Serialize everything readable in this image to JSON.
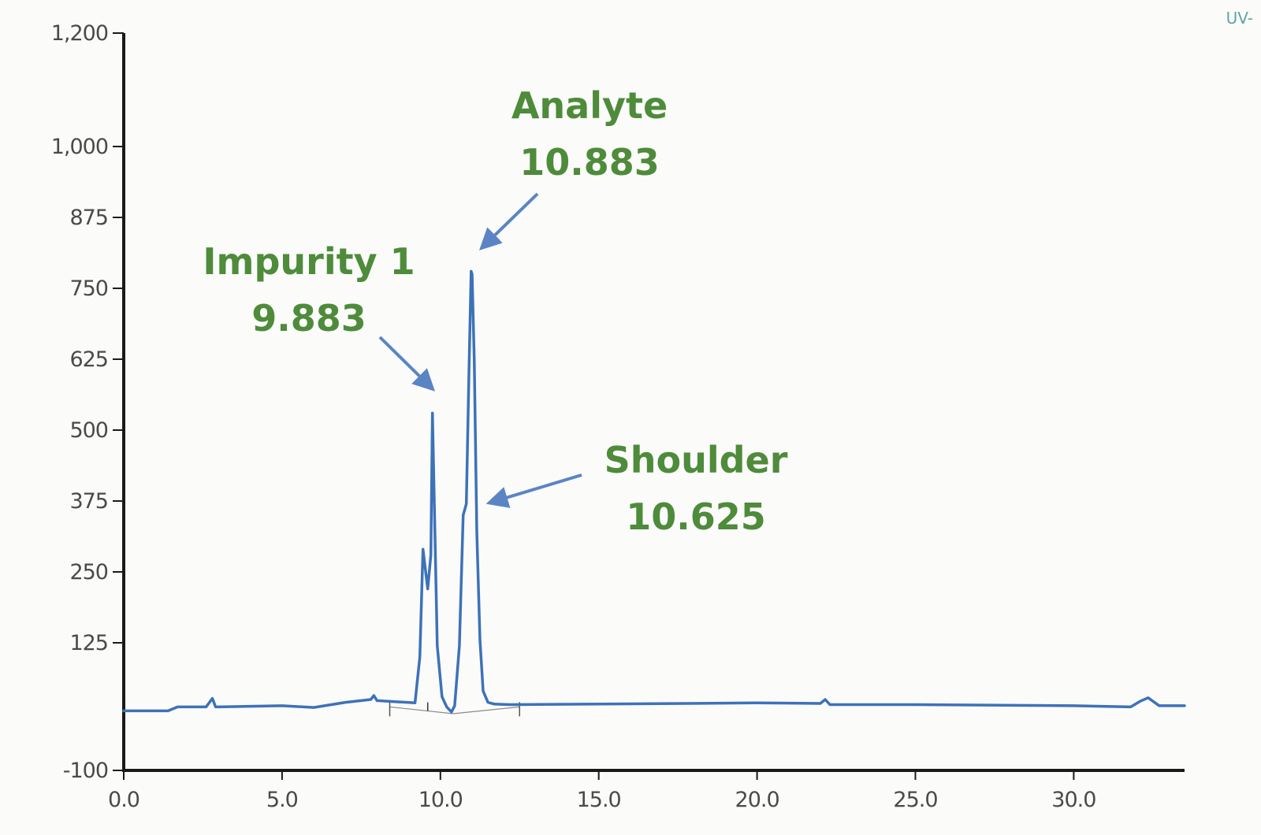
{
  "chart_data": {
    "type": "line",
    "title": "",
    "xlabel": "",
    "ylabel": "",
    "corner_label": "UV-",
    "xlim": [
      0,
      33.5
    ],
    "ylim": [
      -100,
      1200
    ],
    "y_ticks": [
      -100,
      125,
      250,
      375,
      500,
      625,
      750,
      875,
      1000,
      1200
    ],
    "y_tick_labels": [
      "-100",
      "125",
      "250",
      "375",
      "500",
      "625",
      "750",
      "875",
      "1,000",
      "1,200"
    ],
    "x_ticks": [
      0,
      5,
      10,
      15,
      20,
      25,
      30
    ],
    "x_tick_labels": [
      "0.0",
      "5.0",
      "10.0",
      "15.0",
      "20.0",
      "25.0",
      "30.0"
    ],
    "grid": false,
    "series": [
      {
        "color": "#3d72b8",
        "x": [
          0.0,
          1.4,
          1.7,
          2.6,
          2.8,
          2.9,
          3.0,
          5.0,
          6.0,
          7.0,
          7.8,
          7.9,
          8.0,
          9.2,
          9.35,
          9.45,
          9.6,
          9.7,
          9.75,
          9.9,
          10.05,
          10.2,
          10.35,
          10.45,
          10.6,
          10.72,
          10.82,
          10.9,
          10.97,
          11.0,
          11.07,
          11.15,
          11.25,
          11.35,
          11.5,
          11.7,
          12.2,
          15.0,
          20.0,
          22.0,
          22.15,
          22.3,
          25.0,
          30.0,
          31.8,
          32.1,
          32.35,
          32.7,
          33.5
        ],
        "y": [
          5,
          5,
          12,
          12,
          27,
          12,
          12,
          14,
          11,
          20,
          25,
          32,
          23,
          19,
          100,
          290,
          220,
          280,
          530,
          120,
          30,
          12,
          3,
          14,
          120,
          350,
          370,
          600,
          780,
          775,
          620,
          320,
          130,
          40,
          20,
          17,
          16,
          17,
          19,
          18,
          25,
          16,
          16,
          14,
          12,
          22,
          28,
          14,
          14
        ]
      }
    ],
    "baseline_ticks_x": [
      8.4,
      12.5
    ],
    "annotations": [
      {
        "line1": "Analyte",
        "line2": "10.883",
        "peak_x": 11.2,
        "peak_y": 790
      },
      {
        "line1": "Impurity 1",
        "line2": "9.883",
        "peak_x": 9.7,
        "peak_y": 540
      },
      {
        "line1": "Shoulder",
        "line2": "10.625",
        "peak_x": 11.4,
        "peak_y": 360
      }
    ],
    "colors": {
      "line": "#3d72b8",
      "arrow": "#5b84c4",
      "annotation": "#4e8b3a",
      "axis": "#1a1a1a"
    }
  }
}
